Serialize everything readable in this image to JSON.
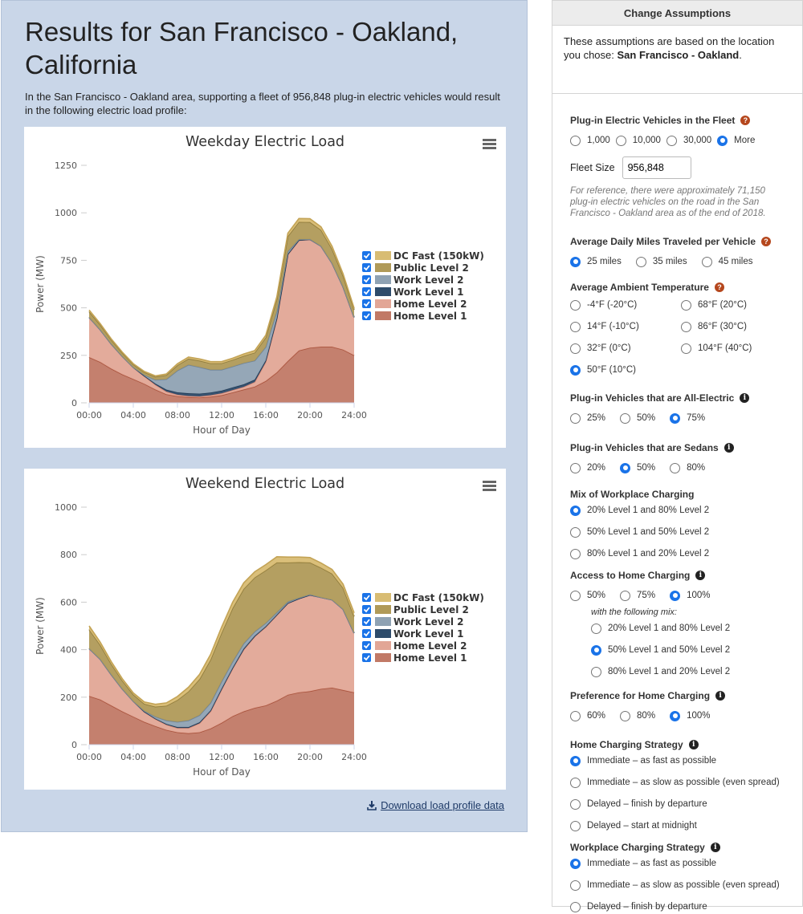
{
  "results": {
    "title": "Results for San Francisco - Oakland, California",
    "intro": "In the San Francisco - Oakland area, supporting a fleet of 956,848 plug-in electric vehicles would result in the following electric load profile:",
    "download_label": "Download load profile data"
  },
  "colors": {
    "dc_fast": "#d8bc73",
    "public_l2": "#b09a58",
    "work_l2": "#8fa2b3",
    "work_l1": "#2e4c6b",
    "home_l2": "#e2a696",
    "home_l1": "#c17966",
    "panel_bg": "#c9d6e8"
  },
  "chart_data": [
    {
      "type": "area",
      "title": "Weekday Electric Load",
      "xlabel": "Hour of Day",
      "ylabel": "Power (MW)",
      "x": [
        0,
        1,
        2,
        3,
        4,
        5,
        6,
        7,
        8,
        9,
        10,
        11,
        12,
        13,
        14,
        15,
        16,
        17,
        18,
        19,
        20,
        21,
        22,
        23,
        24
      ],
      "xticks": [
        "00:00",
        "04:00",
        "08:00",
        "12:00",
        "16:00",
        "20:00",
        "24:00"
      ],
      "ylim": [
        0,
        1250
      ],
      "yticks": [
        0,
        250,
        500,
        750,
        1000,
        1250
      ],
      "stacked": true,
      "grid": false,
      "legend": "right",
      "series": [
        {
          "name": "Home Level 1",
          "values": [
            240,
            215,
            180,
            150,
            125,
            100,
            70,
            45,
            35,
            30,
            28,
            32,
            40,
            55,
            70,
            85,
            115,
            160,
            220,
            275,
            290,
            295,
            295,
            280,
            250
          ]
        },
        {
          "name": "Home Level 2",
          "values": [
            210,
            170,
            130,
            95,
            62,
            40,
            25,
            14,
            8,
            6,
            6,
            8,
            10,
            12,
            14,
            25,
            100,
            280,
            560,
            580,
            570,
            530,
            440,
            330,
            200
          ]
        },
        {
          "name": "Work Level 1",
          "values": [
            0,
            0,
            0,
            0,
            0,
            2,
            6,
            10,
            12,
            14,
            14,
            14,
            14,
            14,
            13,
            12,
            9,
            6,
            3,
            1,
            0,
            0,
            0,
            0,
            0
          ]
        },
        {
          "name": "Work Level 2",
          "values": [
            0,
            0,
            0,
            0,
            0,
            5,
            20,
            55,
            115,
            150,
            140,
            120,
            110,
            110,
            112,
            100,
            70,
            36,
            14,
            4,
            1,
            0,
            0,
            0,
            0
          ]
        },
        {
          "name": "Public Level 2",
          "values": [
            30,
            26,
            22,
            18,
            15,
            14,
            16,
            22,
            28,
            32,
            34,
            34,
            34,
            35,
            38,
            42,
            50,
            62,
            80,
            92,
            90,
            85,
            75,
            58,
            40
          ]
        },
        {
          "name": "DC Fast (150kW)",
          "values": [
            8,
            6,
            5,
            4,
            4,
            4,
            5,
            6,
            8,
            9,
            9,
            9,
            9,
            9,
            10,
            11,
            12,
            14,
            16,
            18,
            18,
            16,
            14,
            11,
            8
          ]
        }
      ]
    },
    {
      "type": "area",
      "title": "Weekend Electric Load",
      "xlabel": "Hour of Day",
      "ylabel": "Power (MW)",
      "x": [
        0,
        1,
        2,
        3,
        4,
        5,
        6,
        7,
        8,
        9,
        10,
        11,
        12,
        13,
        14,
        15,
        16,
        17,
        18,
        19,
        20,
        21,
        22,
        23,
        24
      ],
      "xticks": [
        "00:00",
        "04:00",
        "08:00",
        "12:00",
        "16:00",
        "20:00",
        "24:00"
      ],
      "ylim": [
        0,
        1000
      ],
      "yticks": [
        0,
        200,
        400,
        600,
        800,
        1000
      ],
      "stacked": true,
      "grid": false,
      "legend": "right",
      "series": [
        {
          "name": "Home Level 1",
          "values": [
            205,
            190,
            165,
            140,
            118,
            96,
            78,
            62,
            52,
            48,
            52,
            68,
            92,
            120,
            140,
            155,
            165,
            185,
            210,
            220,
            225,
            235,
            240,
            230,
            220
          ]
        },
        {
          "name": "Home Level 2",
          "values": [
            200,
            170,
            130,
            95,
            65,
            42,
            30,
            22,
            18,
            22,
            38,
            72,
            140,
            200,
            260,
            300,
            330,
            360,
            385,
            395,
            405,
            385,
            370,
            340,
            250
          ]
        },
        {
          "name": "Work Level 1",
          "values": [
            0,
            0,
            0,
            0,
            0,
            1,
            2,
            3,
            4,
            4,
            4,
            4,
            4,
            4,
            4,
            3,
            3,
            2,
            1,
            0,
            0,
            0,
            0,
            0,
            0
          ]
        },
        {
          "name": "Work Level 2",
          "values": [
            0,
            0,
            0,
            0,
            0,
            3,
            8,
            15,
            22,
            28,
            30,
            32,
            30,
            26,
            22,
            18,
            14,
            10,
            6,
            3,
            2,
            0,
            0,
            0,
            0
          ]
        },
        {
          "name": "Public Level 2",
          "values": [
            80,
            60,
            45,
            35,
            28,
            30,
            42,
            62,
            92,
            122,
            152,
            182,
            205,
            225,
            230,
            228,
            222,
            210,
            165,
            150,
            135,
            125,
            110,
            90,
            70
          ]
        },
        {
          "name": "DC Fast (150kW)",
          "values": [
            15,
            12,
            10,
            8,
            7,
            8,
            10,
            12,
            15,
            18,
            20,
            22,
            24,
            25,
            25,
            24,
            24,
            24,
            23,
            22,
            21,
            20,
            18,
            16,
            15
          ]
        }
      ]
    }
  ],
  "assumptions": {
    "header": "Change Assumptions",
    "location_prefix": "These assumptions are based on the location you chose: ",
    "location_name": "San Francisco - Oakland",
    "location_suffix": ".",
    "fleet": {
      "title": "Plug-in Electric Vehicles in the Fleet",
      "options": [
        "1,000",
        "10,000",
        "30,000",
        "More"
      ],
      "selected": 3,
      "size_label": "Fleet Size",
      "size_value": "956,848",
      "reference": "For reference, there were approximately 71,150 plug-in electric vehicles on the road in the San Francisco - Oakland area as of the end of 2018."
    },
    "miles": {
      "title": "Average Daily Miles Traveled per Vehicle",
      "options": [
        "25 miles",
        "35 miles",
        "45 miles"
      ],
      "selected": 0
    },
    "temperature": {
      "title": "Average Ambient Temperature",
      "options": [
        "-4°F (-20°C)",
        "68°F (20°C)",
        "14°F (-10°C)",
        "86°F (30°C)",
        "32°F (0°C)",
        "104°F (40°C)",
        "50°F (10°C)"
      ],
      "selected": 6
    },
    "all_electric": {
      "title": "Plug-in Vehicles that are All-Electric",
      "options": [
        "25%",
        "50%",
        "75%"
      ],
      "selected": 2
    },
    "sedans": {
      "title": "Plug-in Vehicles that are Sedans",
      "options": [
        "20%",
        "50%",
        "80%"
      ],
      "selected": 1
    },
    "workplace_mix": {
      "title": "Mix of Workplace Charging",
      "options": [
        "20% Level 1 and 80% Level 2",
        "50% Level 1 and 50% Level 2",
        "80% Level 1 and 20% Level 2"
      ],
      "selected": 0
    },
    "home_access": {
      "title": "Access to Home Charging",
      "options": [
        "50%",
        "75%",
        "100%"
      ],
      "selected": 2,
      "mix_note": "with the following mix:",
      "mix_options": [
        "20% Level 1 and 80% Level 2",
        "50% Level 1 and 50% Level 2",
        "80% Level 1 and 20% Level 2"
      ],
      "mix_selected": 1
    },
    "home_preference": {
      "title": "Preference for Home Charging",
      "options": [
        "60%",
        "80%",
        "100%"
      ],
      "selected": 2
    },
    "home_strategy": {
      "title": "Home Charging Strategy",
      "options": [
        "Immediate – as fast as possible",
        "Immediate – as slow as possible (even spread)",
        "Delayed – finish by departure",
        "Delayed – start at midnight"
      ],
      "selected": 0
    },
    "work_strategy": {
      "title": "Workplace Charging Strategy",
      "options": [
        "Immediate – as fast as possible",
        "Immediate – as slow as possible (even spread)",
        "Delayed – finish by departure"
      ],
      "selected": 0
    }
  }
}
